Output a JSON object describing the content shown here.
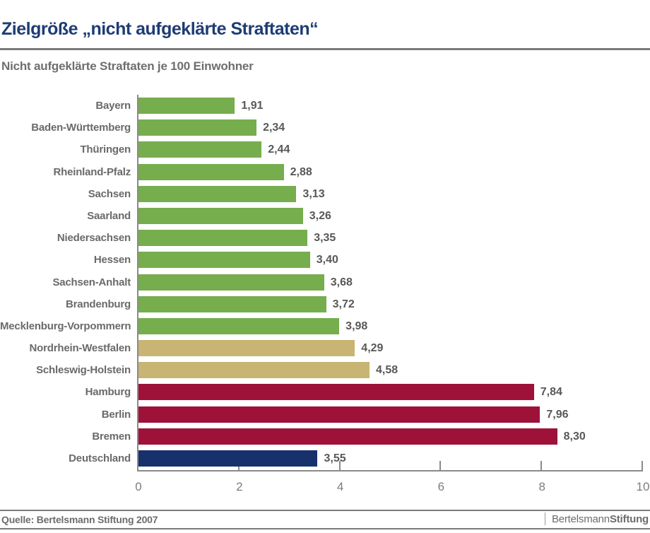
{
  "header": {
    "title": "Zielgröße „nicht aufgeklärte Straftaten“",
    "subtitle": "Nicht aufgeklärte Straftaten je 100 Einwohner"
  },
  "footer": {
    "source": "Quelle: Bertelsmann Stiftung 2007",
    "brand_regular": "Bertelsmann",
    "brand_bold": "Stiftung"
  },
  "chart_data": {
    "type": "bar",
    "orientation": "horizontal",
    "title": "Zielgröße „nicht aufgeklärte Straftaten“",
    "xlabel": "Nicht aufgeklärte Straftaten je 100 Einwohner",
    "ylabel": "",
    "xlim": [
      0,
      10
    ],
    "x_ticks": [
      0,
      2,
      4,
      6,
      8,
      10
    ],
    "grid": false,
    "legend": false,
    "categories": [
      "Bayern",
      "Baden-Württemberg",
      "Thüringen",
      "Rheinland-Pfalz",
      "Sachsen",
      "Saarland",
      "Niedersachsen",
      "Hessen",
      "Sachsen-Anhalt",
      "Brandenburg",
      "Mecklenburg-Vorpommern",
      "Nordrhein-Westfalen",
      "Schleswig-Holstein",
      "Hamburg",
      "Berlin",
      "Bremen",
      "Deutschland"
    ],
    "values": [
      1.91,
      2.34,
      2.44,
      2.88,
      3.13,
      3.26,
      3.35,
      3.4,
      3.68,
      3.72,
      3.98,
      4.29,
      4.58,
      7.84,
      7.96,
      8.3,
      3.55
    ],
    "value_labels": [
      "1,91",
      "2,34",
      "2,44",
      "2,88",
      "3,13",
      "3,26",
      "3,35",
      "3,40",
      "3,68",
      "3,72",
      "3,98",
      "4,29",
      "4,58",
      "7,84",
      "7,96",
      "8,30",
      "3,55"
    ],
    "bar_color_keys": [
      "green",
      "green",
      "green",
      "green",
      "green",
      "green",
      "green",
      "green",
      "green",
      "green",
      "green",
      "tan",
      "tan",
      "red",
      "red",
      "red",
      "blue"
    ],
    "colors": {
      "green": "#76ad4d",
      "tan": "#c8b473",
      "red": "#9e1239",
      "blue": "#17316c",
      "title_navy": "#1e3c74",
      "axis_gray": "#8a8a8a",
      "text_gray": "#6b6a6a"
    }
  }
}
